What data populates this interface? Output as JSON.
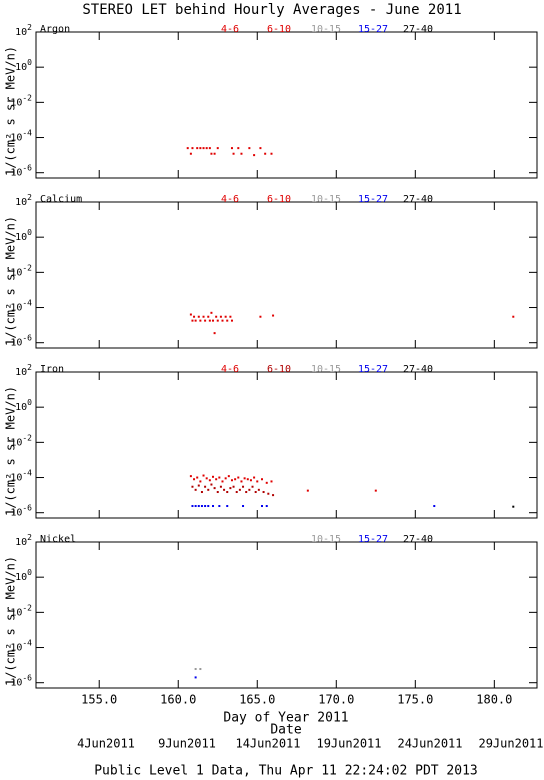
{
  "title": "STEREO LET behind Hourly Averages - June 2011",
  "x_label": "Day of Year 2011",
  "date_axis_label": "Date",
  "date_labels": [
    "4Jun2011",
    "9Jun2011",
    "14Jun2011",
    "19Jun2011",
    "24Jun2011",
    "29Jun2011"
  ],
  "footer": "Public Level 1 Data, Thu Apr 11 22:24:02 PDT 2013",
  "chart_data": [
    {
      "type": "scatter",
      "panel_label": "Argon",
      "y_label": "1/(cm² s sr MeV/n)",
      "log_y": true,
      "xlim": [
        151,
        182.7
      ],
      "ylim": [
        5e-07,
        100
      ],
      "xticks": [
        155,
        160,
        165,
        170,
        175,
        180
      ],
      "yticks": [
        {
          "value": 1e-06,
          "label": "10",
          "power": "-6"
        },
        {
          "value": 0.0001,
          "label": "10",
          "power": "-4"
        },
        {
          "value": 0.01,
          "label": "10",
          "power": "-2"
        },
        {
          "value": 1,
          "label": "10",
          "power": "0"
        },
        {
          "value": 100,
          "label": "10",
          "power": "2"
        }
      ],
      "series": [
        {
          "name": "4-6",
          "color": "#e00000",
          "x": [
            160.6,
            160.9,
            161.2,
            161.4,
            161.6,
            161.8,
            162.0,
            162.5,
            163.4,
            163.8,
            164.5,
            165.2
          ],
          "values": [
            2.5e-05,
            2.5e-05,
            2.5e-05,
            2.5e-05,
            2.5e-05,
            2.5e-05,
            2.5e-05,
            2.5e-05,
            2.5e-05,
            2.5e-05,
            2.5e-05,
            2.5e-05
          ]
        },
        {
          "name": "6-10",
          "color": "#e00000",
          "x": [
            160.8,
            162.1,
            162.3,
            163.5,
            164.0,
            164.8,
            165.5,
            165.9
          ],
          "values": [
            1.2e-05,
            1.2e-05,
            1.2e-05,
            1.2e-05,
            1.2e-05,
            1e-05,
            1.2e-05,
            1.2e-05
          ]
        },
        {
          "name": "10-15",
          "color": "#999999",
          "x": [],
          "values": []
        },
        {
          "name": "15-27",
          "color": "#0000ee",
          "x": [],
          "values": []
        },
        {
          "name": "27-40",
          "color": "#000000",
          "x": [],
          "values": []
        }
      ]
    },
    {
      "type": "scatter",
      "panel_label": "Calcium",
      "y_label": "1/(cm² s sr MeV/n)",
      "log_y": true,
      "xlim": [
        151,
        182.7
      ],
      "ylim": [
        5e-07,
        100
      ],
      "xticks": [
        155,
        160,
        165,
        170,
        175,
        180
      ],
      "yticks": [
        {
          "value": 1e-06,
          "label": "10",
          "power": "-6"
        },
        {
          "value": 0.0001,
          "label": "10",
          "power": "-4"
        },
        {
          "value": 0.01,
          "label": "10",
          "power": "-2"
        },
        {
          "value": 1,
          "label": "10",
          "power": "0"
        },
        {
          "value": 100,
          "label": "10",
          "power": "2"
        }
      ],
      "series": [
        {
          "name": "4-6",
          "color": "#e00000",
          "x": [
            160.8,
            161.0,
            161.3,
            161.6,
            161.9,
            162.1,
            162.4,
            162.7,
            163.0,
            163.3,
            165.2,
            166.0,
            181.2
          ],
          "values": [
            4e-05,
            3e-05,
            3e-05,
            3e-05,
            3e-05,
            5e-05,
            3e-05,
            3e-05,
            3e-05,
            3e-05,
            3e-05,
            3.5e-05,
            3e-05
          ]
        },
        {
          "name": "6-10",
          "color": "#e00000",
          "x": [
            160.9,
            161.1,
            161.4,
            161.7,
            162.0,
            162.2,
            162.3,
            162.5,
            162.8,
            163.1,
            163.4
          ],
          "values": [
            1.8e-05,
            1.8e-05,
            1.8e-05,
            1.8e-05,
            1.8e-05,
            1.8e-05,
            3.5e-06,
            1.8e-05,
            1.8e-05,
            1.8e-05,
            1.8e-05
          ]
        },
        {
          "name": "10-15",
          "color": "#999999",
          "x": [],
          "values": []
        },
        {
          "name": "15-27",
          "color": "#0000ee",
          "x": [],
          "values": []
        },
        {
          "name": "27-40",
          "color": "#000000",
          "x": [],
          "values": []
        }
      ]
    },
    {
      "type": "scatter",
      "panel_label": "Iron",
      "y_label": "1/(cm² s sr MeV/n)",
      "log_y": true,
      "xlim": [
        151,
        182.7
      ],
      "ylim": [
        5e-07,
        100
      ],
      "xticks": [
        155,
        160,
        165,
        170,
        175,
        180
      ],
      "yticks": [
        {
          "value": 1e-06,
          "label": "10",
          "power": "-6"
        },
        {
          "value": 0.0001,
          "label": "10",
          "power": "-4"
        },
        {
          "value": 0.01,
          "label": "10",
          "power": "-2"
        },
        {
          "value": 1,
          "label": "10",
          "power": "0"
        },
        {
          "value": 100,
          "label": "10",
          "power": "2"
        }
      ],
      "series": [
        {
          "name": "4-6",
          "color": "#e00000",
          "x": [
            160.8,
            161.0,
            161.2,
            161.4,
            161.6,
            161.8,
            162.0,
            162.2,
            162.4,
            162.6,
            162.8,
            163.0,
            163.2,
            163.4,
            163.6,
            163.8,
            164.0,
            164.2,
            164.4,
            164.6,
            164.8,
            165.0,
            165.3,
            165.6,
            165.9,
            168.2,
            172.5
          ],
          "values": [
            0.00012,
            8e-05,
            0.0001,
            6e-05,
            0.00013,
            9e-05,
            7e-05,
            0.00011,
            8e-05,
            0.0001,
            6e-05,
            9e-05,
            0.00012,
            7e-05,
            8e-05,
            0.0001,
            6e-05,
            9e-05,
            8e-05,
            7e-05,
            0.0001,
            6e-05,
            8e-05,
            5e-05,
            6e-05,
            1.8e-05,
            1.8e-05
          ]
        },
        {
          "name": "6-10",
          "color": "#b00000",
          "x": [
            160.9,
            161.1,
            161.3,
            161.5,
            161.7,
            161.9,
            162.1,
            162.3,
            162.5,
            162.7,
            162.9,
            163.1,
            163.3,
            163.5,
            163.7,
            163.9,
            164.1,
            164.3,
            164.5,
            164.7,
            164.9,
            165.1,
            165.4,
            165.7,
            166.0
          ],
          "values": [
            3e-05,
            2e-05,
            3.5e-05,
            1.5e-05,
            3e-05,
            2e-05,
            4e-05,
            2.5e-05,
            1.5e-05,
            3e-05,
            2e-05,
            1.5e-05,
            2.5e-05,
            3e-05,
            1.5e-05,
            2e-05,
            3e-05,
            1.5e-05,
            2e-05,
            3e-05,
            1.5e-05,
            2e-05,
            1.5e-05,
            1.2e-05,
            1e-05
          ]
        },
        {
          "name": "10-15",
          "color": "#999999",
          "x": [],
          "values": []
        },
        {
          "name": "15-27",
          "color": "#0000ee",
          "x": [
            160.9,
            161.1,
            161.3,
            161.5,
            161.7,
            161.9,
            162.2,
            162.6,
            163.1,
            164.1,
            165.3,
            165.6,
            176.2
          ],
          "values": [
            2.4e-06,
            2.4e-06,
            2.4e-06,
            2.4e-06,
            2.4e-06,
            2.4e-06,
            2.4e-06,
            2.4e-06,
            2.4e-06,
            2.4e-06,
            2.4e-06,
            2.4e-06,
            2.4e-06
          ]
        },
        {
          "name": "27-40",
          "color": "#000000",
          "x": [
            181.2
          ],
          "values": [
            2.2e-06
          ]
        }
      ]
    },
    {
      "type": "scatter",
      "panel_label": "Nickel",
      "y_label": "1/(cm² s sr MeV/n)",
      "log_y": true,
      "xlim": [
        151,
        182.7
      ],
      "ylim": [
        5e-07,
        100
      ],
      "xticks": [
        {
          "value": 155,
          "label": "155.0"
        },
        {
          "value": 160,
          "label": "160.0"
        },
        {
          "value": 165,
          "label": "165.0"
        },
        {
          "value": 170,
          "label": "170.0"
        },
        {
          "value": 175,
          "label": "175.0"
        },
        {
          "value": 180,
          "label": "180.0"
        }
      ],
      "yticks": [
        {
          "value": 1e-06,
          "label": "10",
          "power": "-6"
        },
        {
          "value": 0.0001,
          "label": "10",
          "power": "-4"
        },
        {
          "value": 0.01,
          "label": "10",
          "power": "-2"
        },
        {
          "value": 1,
          "label": "10",
          "power": "0"
        },
        {
          "value": 100,
          "label": "10",
          "power": "2"
        }
      ],
      "series": [
        {
          "name": "10-15",
          "color": "#999999",
          "x": [
            161.1,
            161.4
          ],
          "values": [
            6e-06,
            6e-06
          ]
        },
        {
          "name": "15-27",
          "color": "#0000ee",
          "x": [
            161.1
          ],
          "values": [
            2e-06
          ]
        },
        {
          "name": "27-40",
          "color": "#000000",
          "x": [],
          "values": []
        }
      ]
    }
  ]
}
